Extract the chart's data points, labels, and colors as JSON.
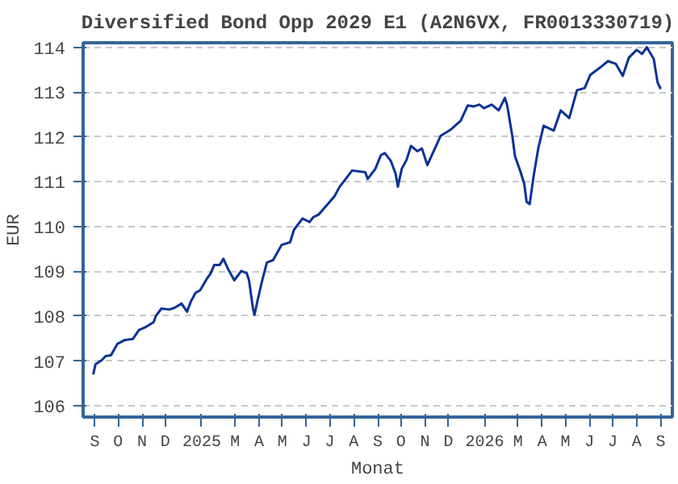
{
  "chart_data": {
    "type": "line",
    "title": "Diversified Bond Opp 2029 E1 (A2N6VX, FR0013330719)",
    "xlabel": "Monat",
    "ylabel": "EUR",
    "xlim": [
      "2024-09-01",
      "2026-10-01"
    ],
    "ylim": [
      105.75,
      114.1
    ],
    "xticks": [
      {
        "value": "2024-09-16",
        "label": "S"
      },
      {
        "value": "2024-10-16",
        "label": "O"
      },
      {
        "value": "2024-11-16",
        "label": "N"
      },
      {
        "value": "2024-12-16",
        "label": "D"
      },
      {
        "value": "2025-02-01",
        "label": "2025"
      },
      {
        "value": "2025-03-16",
        "label": "M"
      },
      {
        "value": "2025-04-16",
        "label": "A"
      },
      {
        "value": "2025-05-16",
        "label": "M"
      },
      {
        "value": "2025-06-16",
        "label": "J"
      },
      {
        "value": "2025-07-16",
        "label": "J"
      },
      {
        "value": "2025-08-16",
        "label": "A"
      },
      {
        "value": "2025-09-16",
        "label": "S"
      },
      {
        "value": "2025-10-16",
        "label": "O"
      },
      {
        "value": "2025-11-16",
        "label": "N"
      },
      {
        "value": "2025-12-16",
        "label": "D"
      },
      {
        "value": "2026-02-01",
        "label": "2026"
      },
      {
        "value": "2026-03-16",
        "label": "M"
      },
      {
        "value": "2026-04-16",
        "label": "A"
      },
      {
        "value": "2026-05-16",
        "label": "M"
      },
      {
        "value": "2026-06-16",
        "label": "J"
      },
      {
        "value": "2026-07-16",
        "label": "J"
      },
      {
        "value": "2026-08-16",
        "label": "A"
      },
      {
        "value": "2026-09-16",
        "label": "S"
      }
    ],
    "yticks": [
      106,
      107,
      108,
      109,
      110,
      111,
      112,
      113,
      114
    ],
    "grid": "y",
    "line_style": "solid",
    "x": [
      "2024-09-14",
      "2024-09-17",
      "2024-09-25",
      "2024-09-30",
      "2024-10-07",
      "2024-10-15",
      "2024-10-25",
      "2024-11-04",
      "2024-11-12",
      "2024-11-21",
      "2024-12-01",
      "2024-12-04",
      "2024-12-11",
      "2024-12-21",
      "2024-12-27",
      "2025-01-06",
      "2025-01-13",
      "2025-01-18",
      "2025-01-24",
      "2025-01-30",
      "2025-02-07",
      "2025-02-12",
      "2025-02-17",
      "2025-02-24",
      "2025-03-01",
      "2025-03-07",
      "2025-03-15",
      "2025-03-24",
      "2025-03-31",
      "2025-04-03",
      "2025-04-08",
      "2025-04-10",
      "2025-04-14",
      "2025-04-20",
      "2025-04-26",
      "2025-05-04",
      "2025-05-15",
      "2025-05-26",
      "2025-05-31",
      "2025-06-11",
      "2025-06-20",
      "2025-06-25",
      "2025-07-02",
      "2025-07-22",
      "2025-07-29",
      "2025-08-14",
      "2025-08-31",
      "2025-09-03",
      "2025-09-13",
      "2025-09-20",
      "2025-09-25",
      "2025-10-03",
      "2025-10-09",
      "2025-10-12",
      "2025-10-17",
      "2025-10-23",
      "2025-10-29",
      "2025-11-06",
      "2025-11-12",
      "2025-11-19",
      "2025-12-06",
      "2025-12-19",
      "2026-01-01",
      "2026-01-10",
      "2026-01-18",
      "2026-01-25",
      "2026-01-31",
      "2026-02-10",
      "2026-02-19",
      "2026-02-27",
      "2026-03-02",
      "2026-03-09",
      "2026-03-12",
      "2026-03-19",
      "2026-03-24",
      "2026-03-27",
      "2026-03-31",
      "2026-04-05",
      "2026-04-11",
      "2026-04-18",
      "2026-05-01",
      "2026-05-10",
      "2026-05-21",
      "2026-05-31",
      "2026-06-10",
      "2026-06-17",
      "2026-06-30",
      "2026-07-10",
      "2026-07-20",
      "2026-07-29",
      "2026-08-06",
      "2026-08-16",
      "2026-08-23",
      "2026-08-29",
      "2026-09-07",
      "2026-09-12",
      "2026-09-16"
    ],
    "series": [
      {
        "color": "#0a3296",
        "values": [
          106.7,
          106.93,
          107.02,
          107.11,
          107.13,
          107.38,
          107.47,
          107.49,
          107.69,
          107.76,
          107.87,
          108.01,
          108.17,
          108.15,
          108.18,
          108.28,
          108.1,
          108.33,
          108.52,
          108.58,
          108.82,
          108.94,
          109.14,
          109.14,
          109.28,
          109.05,
          108.8,
          109.01,
          108.96,
          108.8,
          108.18,
          108.03,
          108.35,
          108.8,
          109.2,
          109.25,
          109.59,
          109.65,
          109.93,
          110.18,
          110.1,
          110.21,
          110.27,
          110.67,
          110.89,
          111.25,
          111.21,
          111.06,
          111.29,
          111.59,
          111.64,
          111.46,
          111.18,
          110.89,
          111.29,
          111.48,
          111.8,
          111.68,
          111.74,
          111.37,
          112.02,
          112.16,
          112.36,
          112.7,
          112.68,
          112.72,
          112.64,
          112.72,
          112.59,
          112.87,
          112.7,
          111.97,
          111.57,
          111.23,
          110.95,
          110.55,
          110.5,
          111.12,
          111.74,
          112.25,
          112.14,
          112.59,
          112.42,
          113.04,
          113.09,
          113.38,
          113.55,
          113.69,
          113.63,
          113.36,
          113.77,
          113.94,
          113.85,
          114.0,
          113.74,
          113.21,
          113.07
        ]
      }
    ]
  }
}
